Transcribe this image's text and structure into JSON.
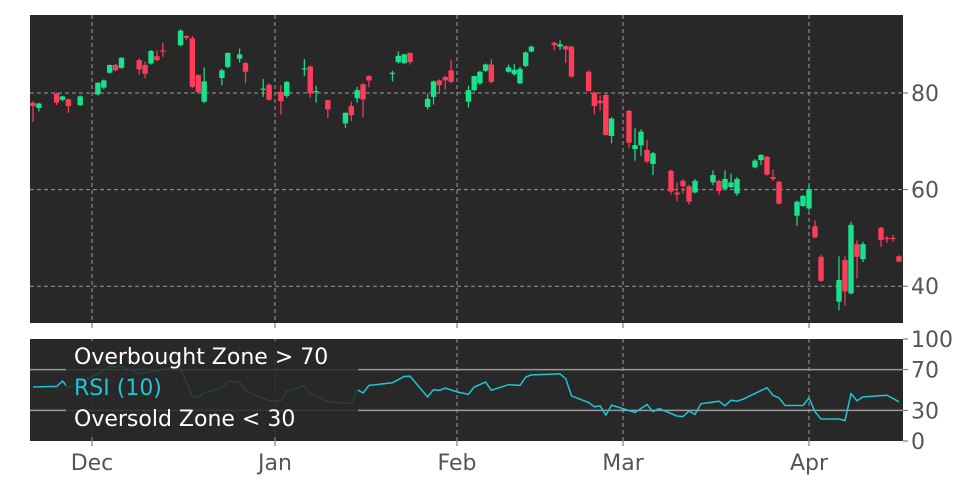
{
  "chart_data": [
    {
      "type": "candlestick",
      "ylim": [
        32,
        96
      ],
      "y_ticks": [
        40,
        60,
        80
      ],
      "grid": true,
      "colors": {
        "up": "#19e28c",
        "down": "#ff3d5a",
        "background": "#282828",
        "grid": "#9a9a9a"
      },
      "candles_columns": [
        "date",
        "open",
        "high",
        "low",
        "close"
      ],
      "candles": [
        [
          "2019-11-21",
          78.0,
          78.3,
          74.0,
          77.3
        ],
        [
          "2019-11-22",
          76.9,
          78.0,
          76.2,
          77.8
        ],
        [
          "2019-11-25",
          79.9,
          80.1,
          77.5,
          78.0
        ],
        [
          "2019-11-26",
          78.6,
          79.4,
          78.3,
          79.3
        ],
        [
          "2019-11-27",
          78.7,
          78.8,
          75.9,
          77.3
        ],
        [
          "2019-11-29",
          77.5,
          79.5,
          77.3,
          79.3
        ],
        [
          "2019-12-02",
          79.7,
          82.3,
          79.5,
          82.1
        ],
        [
          "2019-12-03",
          81.1,
          82.8,
          80.8,
          82.6
        ],
        [
          "2019-12-04",
          84.2,
          85.9,
          84.0,
          85.8
        ],
        [
          "2019-12-05",
          85.8,
          86.0,
          84.5,
          84.7
        ],
        [
          "2019-12-06",
          85.2,
          87.4,
          85.0,
          87.3
        ],
        [
          "2019-12-09",
          86.8,
          87.2,
          83.8,
          84.9
        ],
        [
          "2019-12-10",
          85.8,
          86.5,
          83.0,
          84.0
        ],
        [
          "2019-12-11",
          86.1,
          88.9,
          85.9,
          88.7
        ],
        [
          "2019-12-12",
          87.6,
          88.8,
          86.6,
          86.8
        ],
        [
          "2019-12-13",
          88.8,
          90.4,
          87.5,
          88.6
        ],
        [
          "2019-12-16",
          89.9,
          93.2,
          89.7,
          92.9
        ],
        [
          "2019-12-17",
          91.8,
          92.0,
          91.0,
          91.4
        ],
        [
          "2019-12-18",
          91.3,
          91.8,
          81.0,
          81.3
        ],
        [
          "2019-12-19",
          83.7,
          83.9,
          79.8,
          80.2
        ],
        [
          "2019-12-20",
          78.2,
          85.3,
          77.9,
          82.4
        ],
        [
          "2019-12-23",
          83.1,
          85.0,
          81.6,
          84.7
        ],
        [
          "2019-12-24",
          85.4,
          88.4,
          85.1,
          88.3
        ],
        [
          "2019-12-26",
          87.1,
          89.2,
          86.3,
          88.0
        ],
        [
          "2019-12-27",
          86.2,
          86.4,
          82.0,
          84.4
        ],
        [
          "2019-12-30",
          80.7,
          82.9,
          79.2,
          80.9
        ],
        [
          "2019-12-31",
          81.7,
          82.0,
          78.4,
          78.6
        ],
        [
          "2020-01-02",
          80.2,
          81.6,
          75.5,
          78.3
        ],
        [
          "2020-01-03",
          79.4,
          82.5,
          79.0,
          82.3
        ],
        [
          "2020-01-06",
          84.9,
          87.0,
          83.5,
          85.1
        ],
        [
          "2020-01-07",
          85.5,
          85.7,
          79.0,
          79.9
        ],
        [
          "2020-01-08",
          80.2,
          81.5,
          78.0,
          80.4
        ],
        [
          "2020-01-10",
          78.5,
          78.6,
          74.8,
          76.6
        ],
        [
          "2020-01-13",
          73.7,
          76.0,
          72.8,
          75.9
        ],
        [
          "2020-01-14",
          77.3,
          78.2,
          74.2,
          75.4
        ],
        [
          "2020-01-15",
          78.9,
          81.3,
          78.0,
          80.6
        ],
        [
          "2020-01-16",
          81.8,
          82.0,
          75.0,
          78.7
        ],
        [
          "2020-01-17",
          83.5,
          83.7,
          81.2,
          82.6
        ],
        [
          "2020-01-21",
          84.0,
          84.6,
          82.4,
          84.2
        ],
        [
          "2020-01-22",
          86.4,
          88.6,
          86.1,
          87.7
        ],
        [
          "2020-01-23",
          86.2,
          88.1,
          86.0,
          88.0
        ],
        [
          "2020-01-24",
          88.3,
          88.4,
          85.9,
          86.4
        ],
        [
          "2020-01-27",
          77.1,
          79.9,
          76.6,
          78.8
        ],
        [
          "2020-01-28",
          79.2,
          82.6,
          77.6,
          82.4
        ],
        [
          "2020-01-29",
          82.6,
          82.8,
          80.0,
          81.6
        ],
        [
          "2020-01-30",
          83.3,
          83.6,
          80.7,
          82.6
        ],
        [
          "2020-01-31",
          84.7,
          86.9,
          82.0,
          82.3
        ],
        [
          "2020-02-03",
          78.2,
          81.5,
          77.0,
          80.6
        ],
        [
          "2020-02-04",
          80.6,
          83.6,
          80.3,
          83.5
        ],
        [
          "2020-02-05",
          82.0,
          84.6,
          81.7,
          84.4
        ],
        [
          "2020-02-06",
          84.6,
          86.1,
          84.3,
          85.9
        ],
        [
          "2020-02-07",
          85.9,
          87.0,
          82.0,
          82.3
        ],
        [
          "2020-02-10",
          84.4,
          85.9,
          84.2,
          85.3
        ],
        [
          "2020-02-11",
          83.9,
          86.0,
          83.6,
          84.8
        ],
        [
          "2020-02-12",
          82.0,
          85.4,
          81.8,
          85.0
        ],
        [
          "2020-02-13",
          85.6,
          88.6,
          85.3,
          88.4
        ],
        [
          "2020-02-14",
          88.6,
          89.8,
          88.4,
          89.6
        ],
        [
          "2020-02-18",
          90.4,
          90.6,
          88.8,
          89.9
        ],
        [
          "2020-02-19",
          89.6,
          90.9,
          88.9,
          90.1
        ],
        [
          "2020-02-20",
          89.7,
          89.9,
          86.2,
          89.0
        ],
        [
          "2020-02-21",
          89.6,
          89.8,
          83.2,
          83.4
        ],
        [
          "2020-02-24",
          84.4,
          84.7,
          80.3,
          80.4
        ],
        [
          "2020-02-25",
          80.1,
          80.3,
          75.6,
          77.3
        ],
        [
          "2020-02-26",
          78.4,
          79.5,
          76.4,
          77.9
        ],
        [
          "2020-02-27",
          79.6,
          80.0,
          71.2,
          71.3
        ],
        [
          "2020-02-28",
          71.1,
          75.0,
          69.6,
          74.7
        ],
        [
          "2020-03-02",
          76.3,
          76.5,
          68.6,
          69.7
        ],
        [
          "2020-03-03",
          68.4,
          72.7,
          66.0,
          69.2
        ],
        [
          "2020-03-04",
          69.2,
          72.5,
          67.0,
          72.0
        ],
        [
          "2020-03-05",
          68.2,
          70.3,
          65.5,
          65.8
        ],
        [
          "2020-03-06",
          65.3,
          67.8,
          63.0,
          67.5
        ],
        [
          "2020-03-09",
          63.9,
          64.1,
          59.0,
          59.6
        ],
        [
          "2020-03-10",
          59.4,
          61.5,
          57.6,
          59.0
        ],
        [
          "2020-03-11",
          61.8,
          62.2,
          59.2,
          60.7
        ],
        [
          "2020-03-12",
          60.7,
          61.0,
          56.9,
          57.5
        ],
        [
          "2020-03-13",
          59.4,
          62.2,
          59.2,
          61.8
        ],
        [
          "2020-03-16",
          61.5,
          64.0,
          60.9,
          63.0
        ],
        [
          "2020-03-17",
          61.8,
          62.0,
          58.9,
          59.7
        ],
        [
          "2020-03-18",
          60.2,
          64.0,
          59.9,
          62.2
        ],
        [
          "2020-03-19",
          60.5,
          63.3,
          60.3,
          61.5
        ],
        [
          "2020-03-20",
          59.2,
          62.6,
          58.7,
          62.2
        ],
        [
          "2020-03-23",
          64.6,
          66.3,
          64.4,
          66.0
        ],
        [
          "2020-03-24",
          66.1,
          67.3,
          65.1,
          67.2
        ],
        [
          "2020-03-25",
          66.8,
          67.0,
          62.9,
          63.1
        ],
        [
          "2020-03-26",
          62.6,
          64.1,
          61.8,
          62.2
        ],
        [
          "2020-03-27",
          61.6,
          61.8,
          56.9,
          57.1
        ],
        [
          "2020-03-30",
          54.6,
          57.7,
          52.5,
          57.5
        ],
        [
          "2020-03-31",
          56.6,
          58.9,
          56.4,
          58.7
        ],
        [
          "2020-04-01",
          56.1,
          61.2,
          55.7,
          60.1
        ],
        [
          "2020-04-02",
          52.4,
          53.6,
          49.9,
          50.1
        ],
        [
          "2020-04-03",
          46.1,
          46.5,
          40.9,
          41.1
        ],
        [
          "2020-04-06",
          36.8,
          46.2,
          35.0,
          41.3
        ],
        [
          "2020-04-07",
          45.4,
          46.2,
          36.0,
          38.9
        ],
        [
          "2020-04-08",
          38.5,
          53.3,
          38.3,
          52.7
        ],
        [
          "2020-04-09",
          48.7,
          49.5,
          41.6,
          46.1
        ],
        [
          "2020-04-10",
          45.6,
          49.2,
          45.0,
          48.7
        ],
        [
          "2020-04-13",
          52.1,
          52.3,
          48.1,
          49.6
        ],
        [
          "2020-04-14",
          50.0,
          50.4,
          49.0,
          49.9
        ],
        [
          "2020-04-15",
          50.0,
          50.6,
          49.2,
          49.9
        ],
        [
          "2020-04-16",
          46.2,
          46.4,
          45.0,
          45.1
        ]
      ]
    },
    {
      "type": "line",
      "ylim": [
        0,
        100
      ],
      "y_ticks": [
        0,
        30,
        70,
        100
      ],
      "legend": [
        "Overbought Zone > 70",
        "RSI (10)",
        "Oversold Zone < 30"
      ],
      "legend_placement": "top-left",
      "thresholds": [
        70,
        30
      ],
      "colors": {
        "rsi": "#1cc6d6",
        "threshold": "#9a9a9a",
        "background": "#282828"
      },
      "series": [
        {
          "name": "RSI (10)",
          "points": [
            [
              "2019-11-21",
              52.9
            ],
            [
              "2019-11-25",
              53.5
            ],
            [
              "2019-11-26",
              58.7
            ],
            [
              "2019-11-27",
              52.0
            ],
            [
              "2019-12-02",
              66.0
            ],
            [
              "2019-12-04",
              73.0
            ],
            [
              "2019-12-06",
              73.0
            ],
            [
              "2019-12-07",
              70.6
            ],
            [
              "2019-12-09",
              66.0
            ],
            [
              "2019-12-11",
              67.7
            ],
            [
              "2019-12-15",
              72.0
            ],
            [
              "2019-12-16",
              70.6
            ],
            [
              "2019-12-18",
              44.0
            ],
            [
              "2019-12-19",
              42.6
            ],
            [
              "2019-12-20",
              47.4
            ],
            [
              "2019-12-23",
              52.0
            ],
            [
              "2019-12-24",
              58.4
            ],
            [
              "2019-12-26",
              57.7
            ],
            [
              "2019-12-27",
              49.7
            ],
            [
              "2019-12-29",
              43.9
            ],
            [
              "2019-12-31",
              39.4
            ],
            [
              "2020-01-02",
              39.4
            ],
            [
              "2020-01-03",
              48.7
            ],
            [
              "2020-01-06",
              53.9
            ],
            [
              "2020-01-07",
              45.5
            ],
            [
              "2020-01-08",
              44.8
            ],
            [
              "2020-01-10",
              38.4
            ],
            [
              "2020-01-14",
              36.8
            ],
            [
              "2020-01-15",
              50.3
            ],
            [
              "2020-01-16",
              47.1
            ],
            [
              "2020-01-17",
              54.5
            ],
            [
              "2020-01-21",
              57.1
            ],
            [
              "2020-01-23",
              63.2
            ],
            [
              "2020-01-24",
              63.5
            ],
            [
              "2020-01-27",
              43.2
            ],
            [
              "2020-01-28",
              50.3
            ],
            [
              "2020-01-29",
              49.7
            ],
            [
              "2020-01-30",
              51.9
            ],
            [
              "2020-02-01",
              48.1
            ],
            [
              "2020-02-03",
              45.8
            ],
            [
              "2020-02-04",
              52.9
            ],
            [
              "2020-02-06",
              57.7
            ],
            [
              "2020-02-07",
              49.7
            ],
            [
              "2020-02-10",
              55.2
            ],
            [
              "2020-02-12",
              54.5
            ],
            [
              "2020-02-13",
              62.6
            ],
            [
              "2020-02-14",
              64.8
            ],
            [
              "2020-02-19",
              65.8
            ],
            [
              "2020-02-20",
              61.0
            ],
            [
              "2020-02-21",
              44.2
            ],
            [
              "2020-02-24",
              37.7
            ],
            [
              "2020-02-25",
              33.5
            ],
            [
              "2020-02-26",
              34.5
            ],
            [
              "2020-02-27",
              25.5
            ],
            [
              "2020-02-28",
              35.2
            ],
            [
              "2020-03-03",
              28.0
            ],
            [
              "2020-03-05",
              35.8
            ],
            [
              "2020-03-06",
              28.7
            ],
            [
              "2020-03-07",
              31.9
            ],
            [
              "2020-03-10",
              24.5
            ],
            [
              "2020-03-11",
              23.9
            ],
            [
              "2020-03-12",
              29.4
            ],
            [
              "2020-03-13",
              26.1
            ],
            [
              "2020-03-14",
              36.5
            ],
            [
              "2020-03-17",
              39.0
            ],
            [
              "2020-03-18",
              34.5
            ],
            [
              "2020-03-19",
              40.0
            ],
            [
              "2020-03-20",
              39.0
            ],
            [
              "2020-03-21",
              41.0
            ],
            [
              "2020-03-25",
              52.3
            ],
            [
              "2020-03-26",
              44.8
            ],
            [
              "2020-03-27",
              42.3
            ],
            [
              "2020-03-28",
              34.8
            ],
            [
              "2020-03-31",
              34.8
            ],
            [
              "2020-04-01",
              42.3
            ],
            [
              "2020-04-02",
              28.7
            ],
            [
              "2020-04-03",
              21.6
            ],
            [
              "2020-04-06",
              21.6
            ],
            [
              "2020-04-07",
              20.0
            ],
            [
              "2020-04-08",
              46.5
            ],
            [
              "2020-04-09",
              39.4
            ],
            [
              "2020-04-10",
              43.2
            ],
            [
              "2020-04-14",
              44.8
            ],
            [
              "2020-04-16",
              38.4
            ]
          ]
        }
      ]
    }
  ],
  "x_axis": {
    "ticks": [
      {
        "label": "Dec",
        "date": "2019-12-01"
      },
      {
        "label": "Jan",
        "date": "2020-01-01"
      },
      {
        "label": "Feb",
        "date": "2020-02-01"
      },
      {
        "label": "Mar",
        "date": "2020-03-01"
      },
      {
        "label": "Apr",
        "date": "2020-04-01"
      }
    ]
  }
}
